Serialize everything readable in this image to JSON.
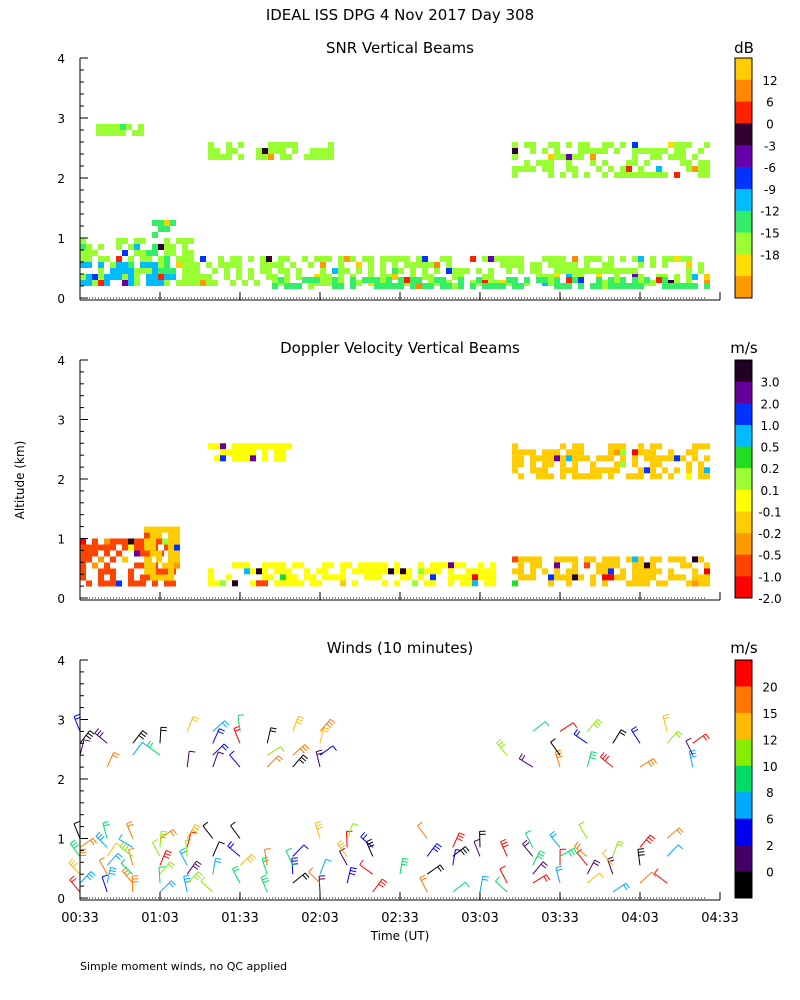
{
  "figure": {
    "title": "IDEAL ISS DPG   4 Nov 2017 Day 308",
    "ylabel": "Altitude (km)",
    "xlabel": "Time (UT)",
    "footnote": "Simple moment winds, no QC applied"
  },
  "chart_data": [
    {
      "type": "heatmap",
      "title": "SNR Vertical Beams",
      "xlabel": "Time (UT)",
      "ylabel": "Altitude (km)",
      "x_range": [
        "00:33",
        "04:33"
      ],
      "ylim": [
        0,
        4
      ],
      "y_ticks": [
        0,
        1,
        2,
        3,
        4
      ],
      "x_ticks": [
        "00:33",
        "01:03",
        "01:33",
        "02:03",
        "02:33",
        "03:03",
        "03:33",
        "04:03",
        "04:33"
      ],
      "colorbar": {
        "unit": "dB",
        "labels": [
          "12",
          "6",
          "0",
          "-3",
          "-6",
          "-9",
          "-12",
          "-15",
          "-18"
        ],
        "colors": [
          "#ffcc00",
          "#ff8800",
          "#ff2200",
          "#330033",
          "#6600aa",
          "#0033ff",
          "#00bbff",
          "#33ee66",
          "#99ff33",
          "#ffdd00",
          "#ff9900"
        ]
      },
      "regions": [
        {
          "t0": 0.0,
          "t1": 0.7,
          "h0": 0.2,
          "h1": 1.0,
          "level": "#99ff33"
        },
        {
          "t0": 0.0,
          "t1": 0.55,
          "h0": 0.2,
          "h1": 0.6,
          "level": "#00bbff"
        },
        {
          "t0": 0.45,
          "t1": 0.6,
          "h0": 0.4,
          "h1": 1.3,
          "level": "#33ee66"
        },
        {
          "t0": 0.6,
          "t1": 4.0,
          "h0": 0.2,
          "h1": 0.7,
          "level": "#99ff33"
        },
        {
          "t0": 1.2,
          "t1": 4.0,
          "h0": 0.2,
          "h1": 0.35,
          "level": "#33ee66"
        },
        {
          "t0": 0.1,
          "t1": 0.4,
          "h0": 2.7,
          "h1": 2.9,
          "level": "#99ff33"
        },
        {
          "t0": 0.8,
          "t1": 1.6,
          "h0": 2.3,
          "h1": 2.6,
          "level": "#99ff33"
        },
        {
          "t0": 2.7,
          "t1": 4.0,
          "h0": 2.0,
          "h1": 2.6,
          "level": "#99ff33"
        }
      ]
    },
    {
      "type": "heatmap",
      "title": "Doppler Velocity Vertical Beams",
      "xlabel": "Time (UT)",
      "ylabel": "Altitude (km)",
      "x_range": [
        "00:33",
        "04:33"
      ],
      "ylim": [
        0,
        4
      ],
      "y_ticks": [
        0,
        1,
        2,
        3,
        4
      ],
      "x_ticks": [
        "00:33",
        "01:03",
        "01:33",
        "02:03",
        "02:33",
        "03:03",
        "03:33",
        "04:03",
        "04:33"
      ],
      "colorbar": {
        "unit": "m/s",
        "labels": [
          "3.0",
          "2.0",
          "1.0",
          "0.5",
          "0.2",
          "0.1",
          "-0.1",
          "-0.2",
          "-0.5",
          "-1.0",
          "-2.0"
        ],
        "colors": [
          "#220022",
          "#660099",
          "#0033ff",
          "#00bbff",
          "#22dd22",
          "#99ff33",
          "#ffff00",
          "#ffcc00",
          "#ff9900",
          "#ff4400",
          "#ff0000"
        ]
      },
      "regions": [
        {
          "t0": 0.0,
          "t1": 0.6,
          "h0": 0.2,
          "h1": 1.0,
          "level": "#ff4400"
        },
        {
          "t0": 0.4,
          "t1": 0.6,
          "h0": 0.3,
          "h1": 1.2,
          "level": "#ffcc00"
        },
        {
          "t0": 0.8,
          "t1": 2.6,
          "h0": 0.2,
          "h1": 0.6,
          "level": "#ffff00"
        },
        {
          "t0": 2.7,
          "t1": 4.0,
          "h0": 0.2,
          "h1": 0.7,
          "level": "#ffcc00"
        },
        {
          "t0": 0.8,
          "t1": 1.3,
          "h0": 2.3,
          "h1": 2.6,
          "level": "#ffff00"
        },
        {
          "t0": 2.7,
          "t1": 4.0,
          "h0": 2.0,
          "h1": 2.6,
          "level": "#ffcc00"
        }
      ]
    },
    {
      "type": "scatter",
      "title": "Winds (10 minutes)",
      "xlabel": "Time (UT)",
      "ylabel": "Altitude (km)",
      "x_range": [
        "00:33",
        "04:33"
      ],
      "ylim": [
        0,
        4
      ],
      "y_ticks": [
        0,
        1,
        2,
        3,
        4
      ],
      "x_ticks": [
        "00:33",
        "01:03",
        "01:33",
        "02:03",
        "02:33",
        "03:03",
        "03:33",
        "04:03",
        "04:33"
      ],
      "colorbar": {
        "unit": "m/s",
        "labels": [
          "20",
          "15",
          "12",
          "10",
          "8",
          "6",
          "2",
          "0"
        ],
        "colors": [
          "#ff0000",
          "#ff7700",
          "#ffbb00",
          "#88ee00",
          "#00dd66",
          "#00aaff",
          "#0000ee",
          "#440066",
          "#000000"
        ]
      },
      "profile_times_h": [
        0.0,
        0.17,
        0.33,
        0.5,
        0.67,
        0.83,
        1.0,
        1.17,
        1.33,
        1.5,
        1.67,
        1.83,
        2.0,
        2.17,
        2.33,
        2.5,
        2.67,
        2.83,
        3.0,
        3.17,
        3.33,
        3.5,
        3.67
      ],
      "upper_profile_times_h": [
        0.0,
        0.17,
        0.33,
        0.5,
        0.67,
        0.83,
        1.0,
        1.17,
        1.33,
        1.5,
        2.67,
        2.83,
        3.0,
        3.17,
        3.33,
        3.5,
        3.67,
        3.83
      ],
      "gate_heights_km": [
        0.1,
        0.25,
        0.4,
        0.55,
        0.7,
        0.85,
        1.0
      ],
      "upper_gate_heights_km": [
        2.2,
        2.4,
        2.6,
        2.8
      ]
    }
  ]
}
